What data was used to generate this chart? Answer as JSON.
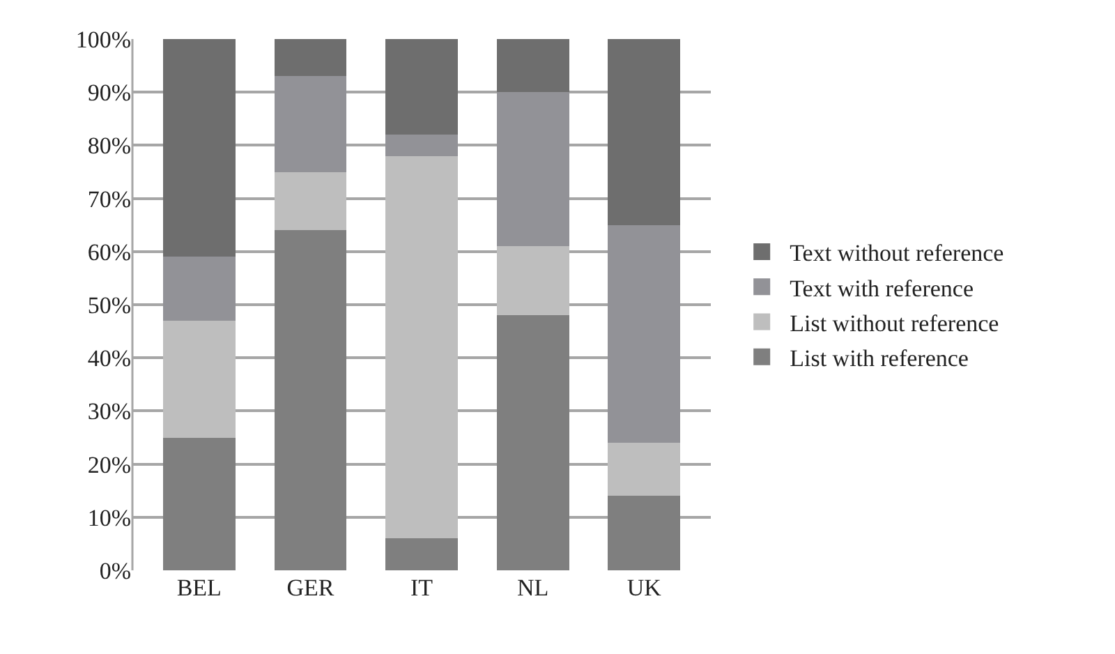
{
  "chart_data": {
    "type": "bar",
    "stacked": true,
    "categories": [
      "BEL",
      "GER",
      "IT",
      "NL",
      "UK"
    ],
    "series": [
      {
        "name": "List with reference",
        "color": "#7f7f7f",
        "values": [
          25,
          64,
          6,
          48,
          14
        ]
      },
      {
        "name": "List without reference",
        "color": "#bebebe",
        "values": [
          22,
          11,
          72,
          13,
          10
        ]
      },
      {
        "name": "Text with reference",
        "color": "#929297",
        "values": [
          12,
          18,
          4,
          29,
          41
        ]
      },
      {
        "name": "Text without reference",
        "color": "#6e6e6e",
        "values": [
          41,
          7,
          18,
          10,
          35
        ]
      }
    ],
    "ylim": [
      0,
      100
    ],
    "yticks": [
      {
        "value": 0,
        "label": "0%"
      },
      {
        "value": 10,
        "label": "10%"
      },
      {
        "value": 20,
        "label": "20%"
      },
      {
        "value": 30,
        "label": "30%"
      },
      {
        "value": 40,
        "label": "40%"
      },
      {
        "value": 50,
        "label": "50%"
      },
      {
        "value": 60,
        "label": "60%"
      },
      {
        "value": 70,
        "label": "70%"
      },
      {
        "value": 80,
        "label": "80%"
      },
      {
        "value": 90,
        "label": "90%"
      },
      {
        "value": 100,
        "label": "100%"
      }
    ],
    "grid": "y",
    "legend": "right"
  }
}
